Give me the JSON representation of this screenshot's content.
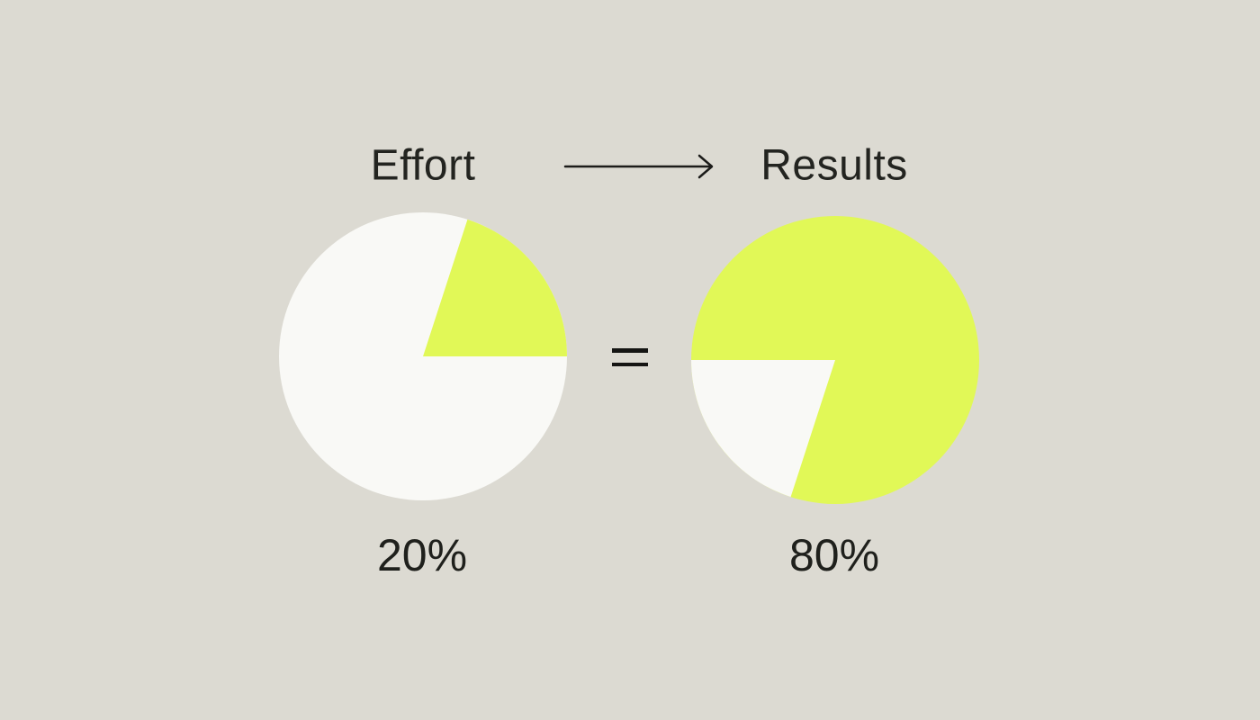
{
  "background_color": "#DCDAD2",
  "text_color": "#232420",
  "header": {
    "left_label": "Effort",
    "right_label": "Results",
    "arrow_glyph": "→"
  },
  "equals_symbol": "=",
  "chart_data": [
    {
      "type": "pie",
      "name": "effort-pie",
      "label": "20%",
      "start_angle_deg": 18,
      "segments": [
        {
          "name": "highlighted",
          "value": 20,
          "color": "#E1F857"
        },
        {
          "name": "remainder",
          "value": 80,
          "color": "#F9F9F6"
        }
      ]
    },
    {
      "type": "pie",
      "name": "results-pie",
      "label": "80%",
      "start_angle_deg": 198,
      "segments": [
        {
          "name": "remainder",
          "value": 20,
          "color": "#F9F9F6"
        },
        {
          "name": "highlighted",
          "value": 80,
          "color": "#E1F857"
        }
      ]
    }
  ],
  "colors": {
    "background": "#DCDAD2",
    "lime": "#E1F857",
    "offwhite": "#F9F9F6",
    "ink": "#232420",
    "line": "#1C1C1A"
  }
}
